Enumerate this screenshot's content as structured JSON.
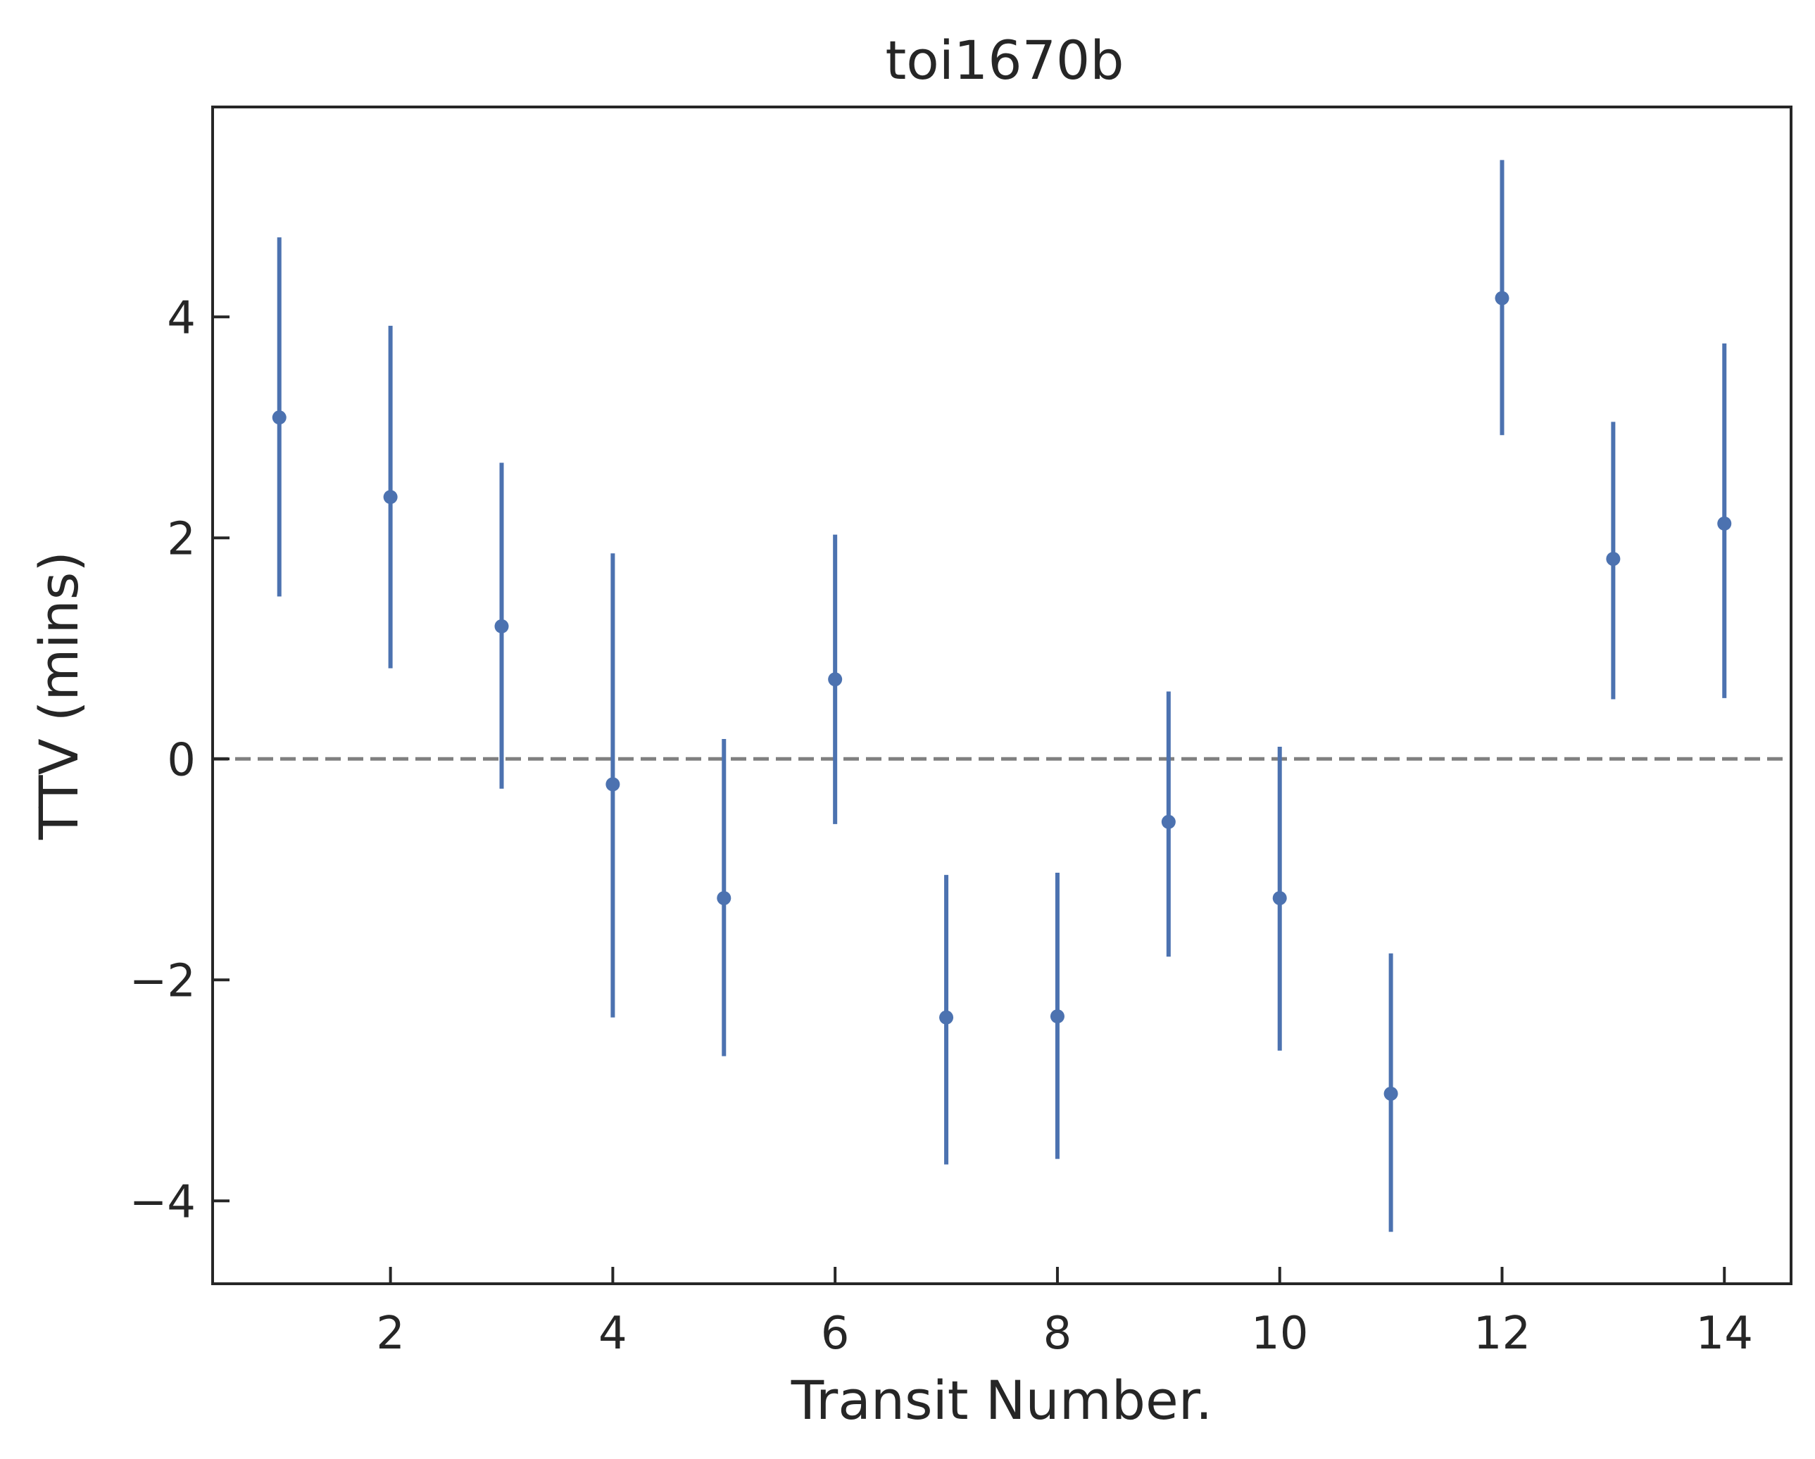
{
  "chart_data": {
    "type": "scatter",
    "title": "toi1670b",
    "xlabel": "Transit Number.",
    "ylabel": "TTV (mins)",
    "xlim": [
      0.4,
      14.6
    ],
    "ylim": [
      -4.75,
      5.9
    ],
    "xticks": [
      2,
      4,
      6,
      8,
      10,
      12,
      14
    ],
    "yticks": [
      -4,
      -2,
      0,
      2,
      4
    ],
    "xtick_labels": [
      "2",
      "4",
      "6",
      "8",
      "10",
      "12",
      "14"
    ],
    "ytick_labels": [
      "−4",
      "−2",
      "0",
      "2",
      "4"
    ],
    "reference_line": {
      "y": 0,
      "style": "dashed",
      "color": "#808080"
    },
    "grid": false,
    "series": [
      {
        "color": "#4c72b0",
        "x": [
          1,
          2,
          3,
          4,
          5,
          6,
          7,
          8,
          9,
          10,
          11,
          12,
          13,
          14
        ],
        "y": [
          3.09,
          2.37,
          1.2,
          -0.23,
          -1.26,
          0.72,
          -2.34,
          -2.33,
          -0.57,
          -1.26,
          -3.03,
          4.17,
          1.81,
          2.13
        ],
        "err_low": [
          1.62,
          1.55,
          1.47,
          2.11,
          1.43,
          1.31,
          1.33,
          1.29,
          1.22,
          1.38,
          1.25,
          1.24,
          1.27,
          1.58
        ],
        "err_high": [
          1.63,
          1.55,
          1.48,
          2.09,
          1.44,
          1.31,
          1.29,
          1.3,
          1.18,
          1.37,
          1.27,
          1.25,
          1.24,
          1.63
        ]
      }
    ]
  }
}
